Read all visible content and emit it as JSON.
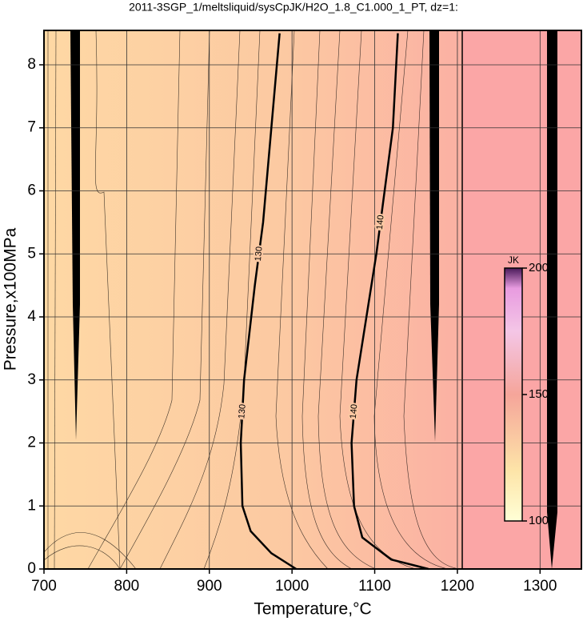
{
  "chart_data": {
    "type": "contour",
    "title": "2011-3SGP_1/meltsliquid/sysCpJK/H2O_1.8_C1.000_1_PT, dz=1:",
    "x_label": "Temperature,°C",
    "y_label": "Pressure,x100MPa",
    "xlim": [
      700,
      1350
    ],
    "xticks": [
      700,
      800,
      900,
      1000,
      1100,
      1200,
      1300
    ],
    "ylim": [
      0,
      8.5
    ],
    "yticks": [
      0,
      1,
      2,
      3,
      4,
      5,
      6,
      7,
      8
    ],
    "grid": true,
    "contours": [
      {
        "level": 130,
        "x": [
          1005,
          975,
          950,
          940,
          938,
          942,
          955,
          965,
          975,
          985
        ],
        "y": [
          0,
          0.25,
          0.6,
          1.0,
          2.0,
          3.0,
          4.5,
          5.5,
          7.0,
          8.5
        ]
      },
      {
        "level": 140,
        "x": [
          1165,
          1120,
          1085,
          1075,
          1072,
          1078,
          1090,
          1102,
          1112,
          1122,
          1128
        ],
        "y": [
          0,
          0.15,
          0.5,
          1.0,
          2.0,
          3.0,
          4.0,
          5.0,
          6.0,
          7.0,
          8.5
        ]
      }
    ],
    "colorbar": {
      "label": "JK",
      "lim": [
        100,
        200
      ],
      "ticks": [
        100,
        150,
        200
      ]
    }
  }
}
